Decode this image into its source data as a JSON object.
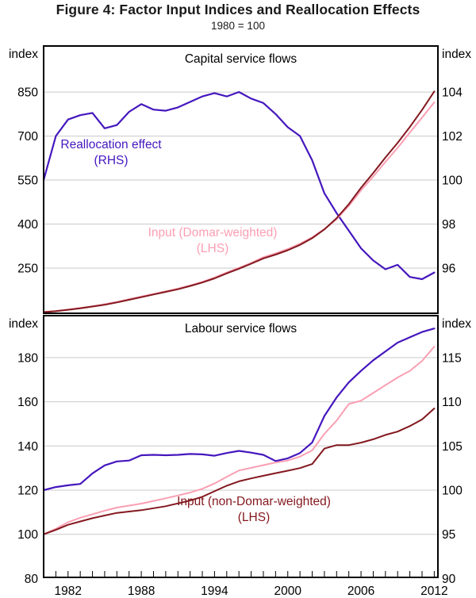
{
  "title": "Figure 4: Factor Input Indices and Reallocation Effects",
  "subtitle": "1980 = 100",
  "colors": {
    "purple": "#4517BE",
    "pink": "#FB9FB3",
    "dark_red": "#83181E",
    "grid": "#C9C9C9",
    "axis": "#000000"
  },
  "chart_data": [
    {
      "type": "line",
      "panel_title": "Capital service flows",
      "axis_unit_label": "index",
      "left_axis": {
        "ticks": [
          850,
          700,
          550,
          400,
          250
        ],
        "range": [
          96,
          1007
        ]
      },
      "right_axis": {
        "ticks": [
          104,
          102,
          100,
          98,
          96
        ],
        "range": [
          93.95,
          106.09
        ]
      },
      "x_axis": {
        "start": 1980,
        "end": 2012.3,
        "minor_tick_every": 1,
        "label_years": [
          1982,
          1988,
          1994,
          2000,
          2006,
          2012
        ]
      },
      "series": [
        {
          "name": "Reallocation effect (RHS)",
          "axis": "right",
          "color_key": "purple",
          "start_year": 1980,
          "values": [
            100,
            102.0,
            102.75,
            102.95,
            103.05,
            102.35,
            102.5,
            103.1,
            103.45,
            103.2,
            103.15,
            103.3,
            103.55,
            103.8,
            103.95,
            103.8,
            104.0,
            103.7,
            103.5,
            103.0,
            102.4,
            102.0,
            100.9,
            99.4,
            98.5,
            97.7,
            96.9,
            96.35,
            95.95,
            96.15,
            95.6,
            95.5,
            95.8
          ]
        },
        {
          "name": "Input (Domar-weighted) (LHS)",
          "axis": "left",
          "color_key": "pink",
          "start_year": 1980,
          "values": [
            100,
            104,
            109,
            114,
            120,
            127,
            135,
            144,
            153,
            162,
            171,
            180,
            191,
            203,
            218,
            235,
            251,
            268,
            287,
            300,
            315,
            333,
            355,
            383,
            417,
            462,
            515,
            562,
            612,
            660,
            712,
            763,
            815
          ]
        },
        {
          "name": "Input (non-Domar-weighted) (LHS)",
          "axis": "left",
          "color_key": "dark_red",
          "start_year": 1980,
          "values": [
            100,
            103,
            108,
            113,
            119,
            125,
            133,
            142,
            151,
            160,
            169,
            178,
            189,
            201,
            215,
            232,
            248,
            265,
            283,
            296,
            311,
            329,
            352,
            382,
            420,
            468,
            524,
            574,
            627,
            677,
            731,
            789,
            852
          ]
        }
      ],
      "annotations": [
        {
          "id": "realloc",
          "lines": [
            "Reallocation effect",
            "(RHS)"
          ],
          "color_key": "purple"
        },
        {
          "id": "domar",
          "lines": [
            "Input (Domar-weighted)",
            "(LHS)"
          ],
          "color_key": "pink"
        }
      ]
    },
    {
      "type": "line",
      "panel_title": "Labour service flows",
      "axis_unit_label": "index",
      "left_axis": {
        "ticks": [
          180,
          160,
          140,
          120,
          100,
          80
        ],
        "range": [
          80.5,
          199
        ]
      },
      "right_axis": {
        "ticks": [
          115,
          110,
          105,
          100,
          95,
          90
        ],
        "range": [
          90.13,
          119.75
        ]
      },
      "x_axis": {
        "start": 1980,
        "end": 2012.3,
        "minor_tick_every": 1,
        "label_years": [
          1982,
          1988,
          1994,
          2000,
          2006,
          2012
        ]
      },
      "series": [
        {
          "name": "Reallocation effect (RHS)",
          "axis": "right",
          "color_key": "purple",
          "start_year": 1980,
          "values": [
            100,
            100.35,
            100.55,
            100.7,
            101.9,
            102.8,
            103.25,
            103.35,
            103.95,
            104.0,
            103.95,
            104.0,
            104.1,
            104.05,
            103.9,
            104.2,
            104.45,
            104.25,
            104.0,
            103.3,
            103.6,
            104.2,
            105.4,
            108.4,
            110.5,
            112.2,
            113.5,
            114.7,
            115.7,
            116.7,
            117.3,
            117.9,
            118.3
          ]
        },
        {
          "name": "Input (Domar-weighted) (LHS)",
          "axis": "left",
          "color_key": "pink",
          "start_year": 1980,
          "values": [
            100,
            102.5,
            105.5,
            107.5,
            109.1,
            110.7,
            112.1,
            113.0,
            113.9,
            115.1,
            116.3,
            117.6,
            118.9,
            120.6,
            123,
            126,
            128.9,
            130.1,
            131.3,
            132.5,
            133.4,
            135.2,
            138,
            145.5,
            151.5,
            159,
            160.5,
            164,
            167.5,
            171,
            174,
            178.5,
            185
          ]
        },
        {
          "name": "Input (non-Domar-weighted) (LHS)",
          "axis": "left",
          "color_key": "dark_red",
          "start_year": 1980,
          "values": [
            100,
            102,
            104.3,
            105.8,
            107.3,
            108.5,
            109.7,
            110.3,
            110.9,
            111.8,
            112.7,
            114,
            115.3,
            117,
            119.5,
            122,
            124,
            125.3,
            126.5,
            127.7,
            128.8,
            130,
            131.8,
            138.8,
            140.4,
            140.4,
            141.5,
            143,
            145,
            146.5,
            149,
            152,
            157
          ]
        }
      ],
      "annotations": [
        {
          "id": "nondomar",
          "lines": [
            "Input (non-Domar-weighted)",
            "(LHS)"
          ],
          "color_key": "dark_red"
        }
      ]
    }
  ]
}
